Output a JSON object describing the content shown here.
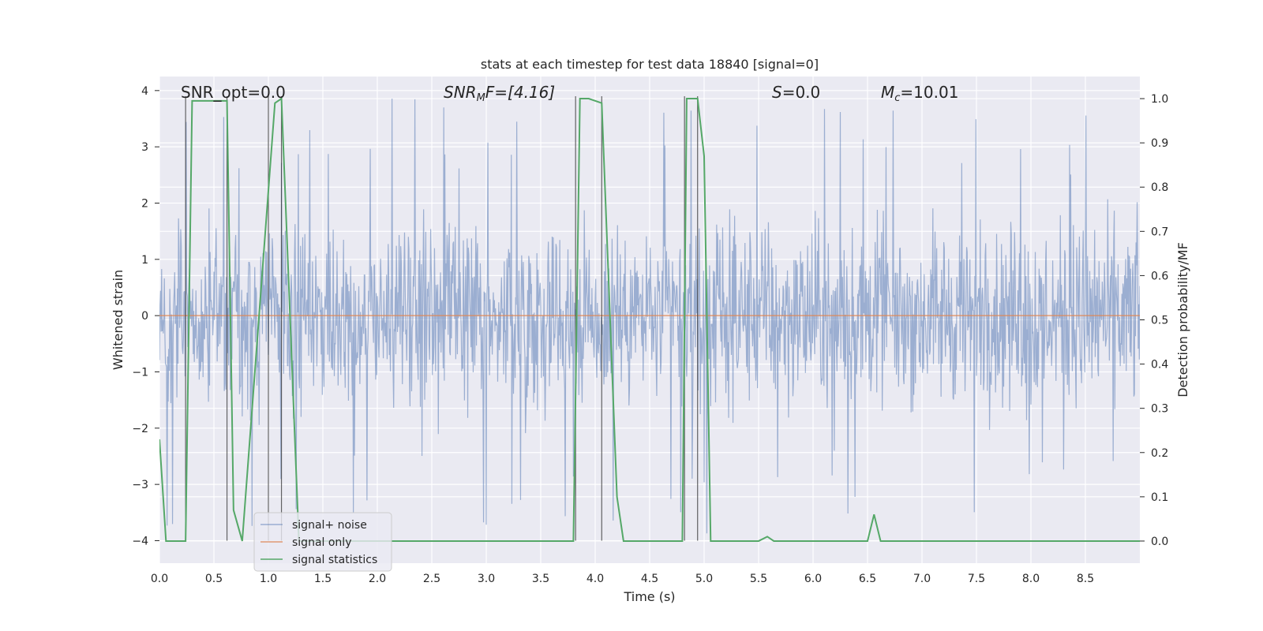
{
  "chart_data": {
    "type": "line",
    "title": "stats at each timestep for test data 18840 [signal=0]",
    "xlabel": "Time (s)",
    "ylabel_left": "Whitened strain",
    "ylabel_right": "Detection probability/MF",
    "xlim": [
      0.0,
      9.0
    ],
    "ylim_left": [
      -4.4,
      4.25
    ],
    "ylim_right": [
      -0.05,
      1.05
    ],
    "x_ticks": [
      "0.0",
      "0.5",
      "1.0",
      "1.5",
      "2.0",
      "2.5",
      "3.0",
      "3.5",
      "4.0",
      "4.5",
      "5.0",
      "5.5",
      "6.0",
      "6.5",
      "7.0",
      "7.5",
      "8.0",
      "8.5"
    ],
    "y_ticks_left": [
      "4",
      "3",
      "2",
      "1",
      "0",
      "−1",
      "−2",
      "−3",
      "−4"
    ],
    "y_ticks_right": [
      "1.0",
      "0.9",
      "0.8",
      "0.7",
      "0.6",
      "0.5",
      "0.4",
      "0.3",
      "0.2",
      "0.1",
      "0.0"
    ],
    "grid": true,
    "annotations": {
      "snr_opt": "SNR_opt=0.0",
      "snr_mf_prefix": "SNR",
      "snr_mf_sub": "M",
      "snr_mf_rest": "F=[4.16]",
      "s_italic": "S",
      "s_rest": "=0.0",
      "mc_italic": "M",
      "mc_sub": "c",
      "mc_rest": "=10.01"
    },
    "legend": {
      "position": "lower-left",
      "entries": [
        "signal+ noise",
        "signal only",
        "signal statistics"
      ]
    },
    "colors": {
      "signal_noise": "#4c72b0",
      "signal_only": "#dd8452",
      "signal_statistics": "#55a868",
      "markers": "#333333",
      "background": "#eaeaf2"
    },
    "series": [
      {
        "name": "signal+ noise",
        "axis": "left",
        "description_stats": {
          "band_low": -1.6,
          "band_high": 1.6,
          "max": 4.0,
          "min": -3.95,
          "samples_per_second": 200
        }
      },
      {
        "name": "signal only",
        "axis": "left",
        "x": [
          0.0,
          9.0
        ],
        "y": [
          0.0,
          0.0
        ]
      },
      {
        "name": "signal statistics",
        "axis": "right",
        "x": [
          0.0,
          0.06,
          0.24,
          0.3,
          0.62,
          0.68,
          0.76,
          1.06,
          1.12,
          1.28,
          1.36,
          3.8,
          3.86,
          3.94,
          4.06,
          4.2,
          4.26,
          4.8,
          4.84,
          4.94,
          5.0,
          5.06,
          5.5,
          5.58,
          5.64,
          6.5,
          6.56,
          6.62,
          9.0
        ],
        "y": [
          0.23,
          0.0,
          0.0,
          0.995,
          0.995,
          0.07,
          0.0,
          0.99,
          1.0,
          0.0,
          0.0,
          0.0,
          1.0,
          1.0,
          0.99,
          0.1,
          0.0,
          0.0,
          1.0,
          1.0,
          0.87,
          0.0,
          0.0,
          0.01,
          0.0,
          0.0,
          0.06,
          0.0,
          0.0
        ]
      }
    ],
    "marker_lines": [
      0.24,
      0.62,
      1.0,
      1.12,
      3.82,
      4.06,
      4.82,
      4.94
    ]
  }
}
